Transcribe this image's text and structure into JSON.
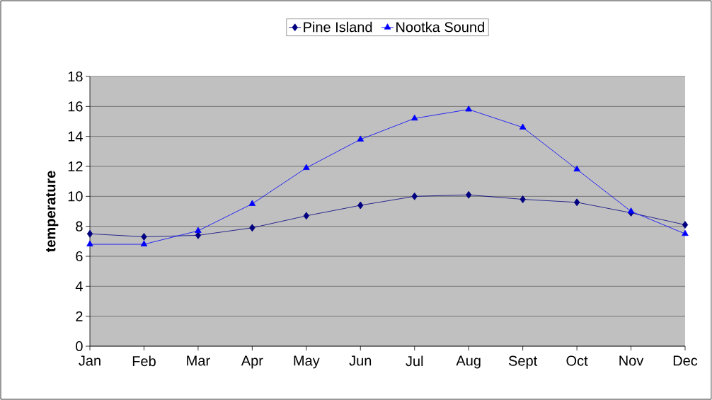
{
  "chart_data": {
    "type": "line",
    "ylabel": "temperature",
    "categories": [
      "Jan",
      "Feb",
      "Mar",
      "Apr",
      "May",
      "Jun",
      "Jul",
      "Aug",
      "Sept",
      "Oct",
      "Nov",
      "Dec"
    ],
    "series": [
      {
        "name": "Pine Island",
        "color": "#000080",
        "marker": "diamond",
        "values": [
          7.5,
          7.3,
          7.4,
          7.9,
          8.7,
          9.4,
          10.0,
          10.1,
          9.8,
          9.6,
          8.9,
          8.1
        ]
      },
      {
        "name": "Nootka Sound",
        "color": "#0000ff",
        "marker": "triangle",
        "values": [
          6.8,
          6.8,
          7.7,
          9.5,
          11.9,
          13.8,
          15.2,
          15.8,
          14.6,
          11.8,
          9.0,
          7.5
        ]
      }
    ],
    "ylim": [
      0,
      18
    ],
    "yticks": [
      0,
      2,
      4,
      6,
      8,
      10,
      12,
      14,
      16,
      18
    ],
    "grid": "y",
    "legend": "top",
    "line_style": "solid"
  }
}
